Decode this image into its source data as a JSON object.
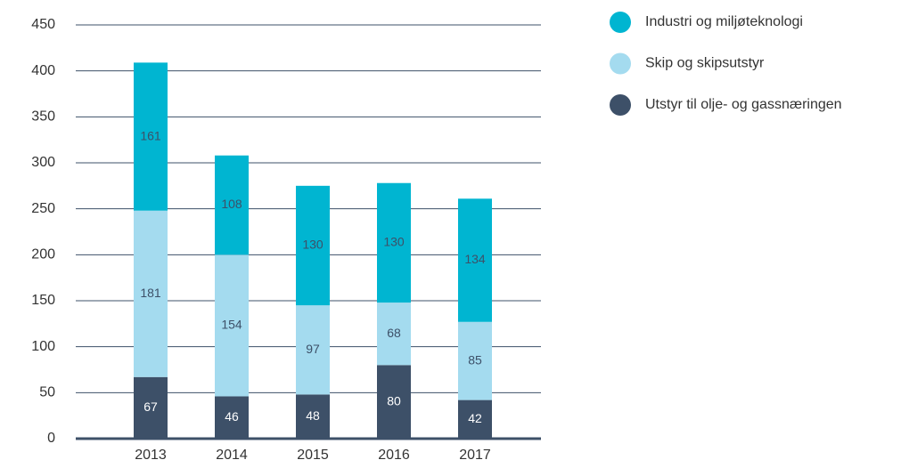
{
  "chart_data": {
    "type": "stacked_bar",
    "categories": [
      "2013",
      "2014",
      "2015",
      "2016",
      "2017"
    ],
    "series": [
      {
        "name": "Utstyr til olje- og gassnæringen",
        "color": "#3d5068",
        "values": [
          67,
          46,
          48,
          80,
          42
        ]
      },
      {
        "name": "Skip og skipsutstyr",
        "color": "#a4dbef",
        "values": [
          181,
          154,
          97,
          68,
          85
        ]
      },
      {
        "name": "Industri og miljøteknologi",
        "color": "#00b5d1",
        "values": [
          161,
          108,
          130,
          130,
          134
        ]
      }
    ],
    "ylim": [
      0,
      450
    ],
    "yticks": [
      0,
      50,
      100,
      150,
      200,
      250,
      300,
      350,
      400,
      450
    ],
    "grid": true
  }
}
